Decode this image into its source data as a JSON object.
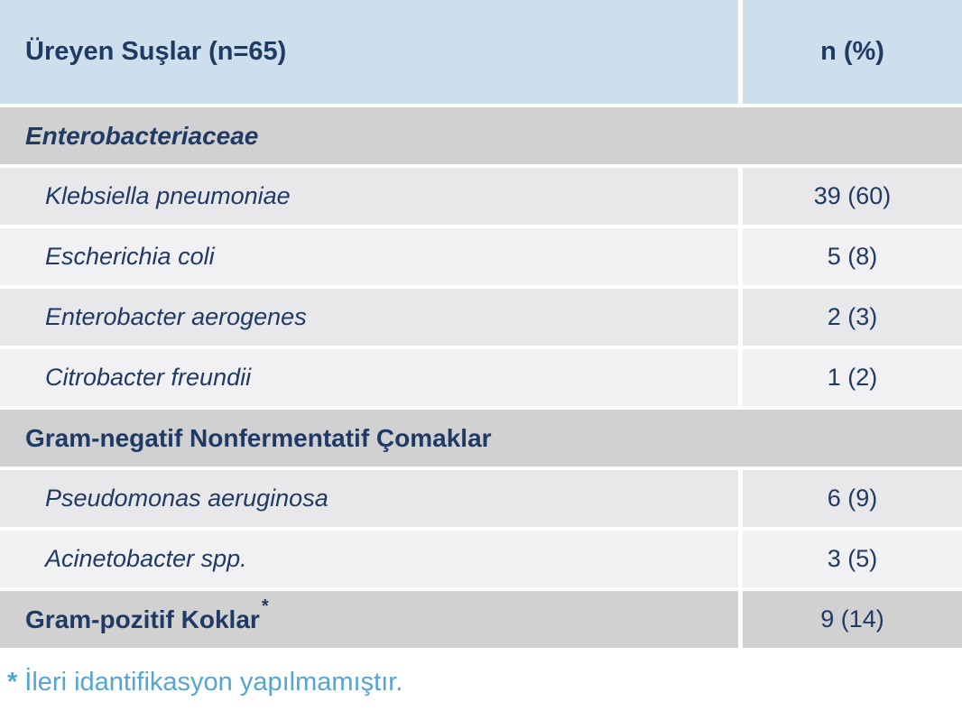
{
  "table": {
    "header": {
      "strains_label": "Üreyen Suşlar (n=65)",
      "count_label": "n (%)"
    },
    "rows": [
      {
        "type": "section",
        "style": "bold-italic",
        "label": "Enterobacteriaceae",
        "value": null
      },
      {
        "type": "species",
        "label": "Klebsiella pneumoniae",
        "value": "39 (60)"
      },
      {
        "type": "species",
        "label": "Escherichia coli",
        "value": "5 (8)"
      },
      {
        "type": "species",
        "label": "Enterobacter aerogenes",
        "value": "2 (3)"
      },
      {
        "type": "species",
        "label": "Citrobacter freundii",
        "value": "1 (2)"
      },
      {
        "type": "section",
        "style": "bold",
        "label": "Gram-negatif Nonfermentatif Çomaklar",
        "value": null
      },
      {
        "type": "species",
        "label": "Pseudomonas aeruginosa",
        "value": "6 (9)"
      },
      {
        "type": "species",
        "label": "Acinetobacter spp.",
        "value": "3 (5)"
      },
      {
        "type": "section-with-value",
        "style": "bold",
        "label": "Gram-pozitif Koklar",
        "marker": "*",
        "value": "9 (14)"
      }
    ]
  },
  "footnote": {
    "marker": "*",
    "text": "İleri idantifikasyon yapılmamıştır."
  },
  "colors": {
    "header_background": "#cddfed",
    "section_background": "#d1d1d1",
    "row_dark_background": "#e8e8ea",
    "row_light_background": "#f1f1f3",
    "text_navy": "#1f3a64",
    "footnote_blue": "#55a5d1",
    "divider_white": "#ffffff"
  },
  "chart_data": {
    "type": "table",
    "title": "Üreyen Suşlar (n=65)",
    "columns": [
      "Üreyen Suşlar (n=65)",
      "n (%)"
    ],
    "groups": [
      {
        "group": "Enterobacteriaceae",
        "items": [
          {
            "name": "Klebsiella pneumoniae",
            "n": 39,
            "percent": 60
          },
          {
            "name": "Escherichia coli",
            "n": 5,
            "percent": 8
          },
          {
            "name": "Enterobacter aerogenes",
            "n": 2,
            "percent": 3
          },
          {
            "name": "Citrobacter freundii",
            "n": 1,
            "percent": 2
          }
        ]
      },
      {
        "group": "Gram-negatif Nonfermentatif Çomaklar",
        "items": [
          {
            "name": "Pseudomonas aeruginosa",
            "n": 6,
            "percent": 9
          },
          {
            "name": "Acinetobacter spp.",
            "n": 3,
            "percent": 5
          }
        ]
      },
      {
        "group": "Gram-pozitif Koklar*",
        "items": [],
        "n": 9,
        "percent": 14
      }
    ],
    "footnote": "* İleri idantifikasyon yapılmamıştır."
  }
}
